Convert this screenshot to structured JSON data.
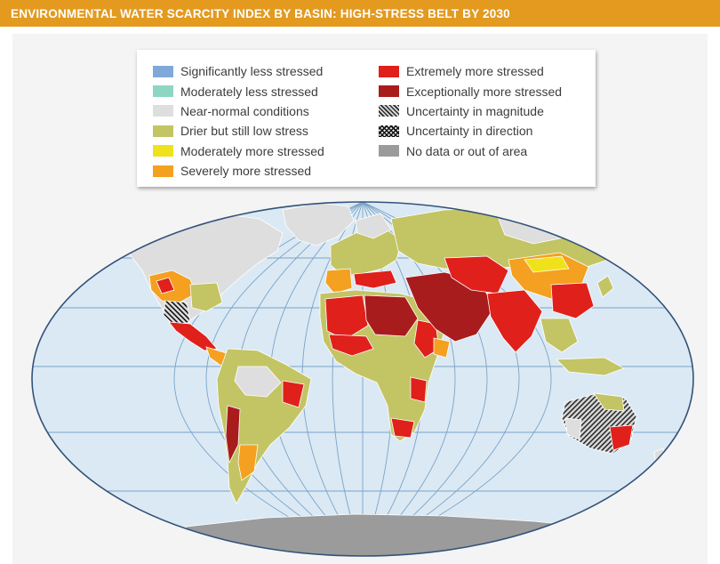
{
  "title": "ENVIRONMENTAL WATER SCARCITY INDEX BY BASIN: HIGH-STRESS BELT BY 2030",
  "colors": {
    "title_bar": "#e39a1f",
    "ocean": "#dbe9f4",
    "graticule": "#7aa3c8",
    "border": "#ffffff"
  },
  "legend": {
    "items": [
      {
        "label": "Significantly less stressed",
        "color": "#7fa9d9",
        "pattern": "solid"
      },
      {
        "label": "Moderately less stressed",
        "color": "#8ed6c4",
        "pattern": "solid"
      },
      {
        "label": "Near-normal conditions",
        "color": "#dedede",
        "pattern": "solid"
      },
      {
        "label": "Drier but still low stress",
        "color": "#c3c464",
        "pattern": "solid"
      },
      {
        "label": "Moderately more stressed",
        "color": "#efe21a",
        "pattern": "solid"
      },
      {
        "label": "Severely more stressed",
        "color": "#f4a020",
        "pattern": "solid"
      },
      {
        "label": "Extremely more stressed",
        "color": "#e0201b",
        "pattern": "solid"
      },
      {
        "label": "Exceptionally more stressed",
        "color": "#a81c1e",
        "pattern": "solid"
      },
      {
        "label": "Uncertainty in magnitude",
        "color": "#5a5a5a",
        "pattern": "hatch-magnitude"
      },
      {
        "label": "Uncertainty in direction",
        "color": "#111111",
        "pattern": "hatch-direction"
      },
      {
        "label": "No data or out of area",
        "color": "#9b9b9b",
        "pattern": "solid"
      }
    ]
  },
  "regions": [
    {
      "name": "North America",
      "category": "Near-normal conditions"
    },
    {
      "name": "Western United States",
      "category": "Severely more stressed"
    },
    {
      "name": "Southwestern United States",
      "category": "Uncertainty in direction"
    },
    {
      "name": "Mexico",
      "category": "Extremely more stressed"
    },
    {
      "name": "Greenland",
      "category": "No data or out of area"
    },
    {
      "name": "South America",
      "category": "Drier but still low stress"
    },
    {
      "name": "Northeastern Brazil",
      "category": "Extremely more stressed"
    },
    {
      "name": "Southern Andes",
      "category": "Exceptionally more stressed"
    },
    {
      "name": "Europe",
      "category": "Drier but still low stress"
    },
    {
      "name": "Iberia",
      "category": "Severely more stressed"
    },
    {
      "name": "Sahara",
      "category": "Exceptionally more stressed"
    },
    {
      "name": "West Africa",
      "category": "Extremely more stressed"
    },
    {
      "name": "Central and Southern Africa",
      "category": "Drier but still low stress"
    },
    {
      "name": "Middle East",
      "category": "Exceptionally more stressed"
    },
    {
      "name": "Central Asia",
      "category": "Extremely more stressed"
    },
    {
      "name": "India",
      "category": "Extremely more stressed"
    },
    {
      "name": "Northern China",
      "category": "Severely more stressed"
    },
    {
      "name": "Russia",
      "category": "Drier but still low stress"
    },
    {
      "name": "Southeast Asia",
      "category": "Drier but still low stress"
    },
    {
      "name": "Australia",
      "category": "Uncertainty in magnitude"
    },
    {
      "name": "Southeastern Australia",
      "category": "Extremely more stressed"
    },
    {
      "name": "Antarctica",
      "category": "No data or out of area"
    }
  ]
}
